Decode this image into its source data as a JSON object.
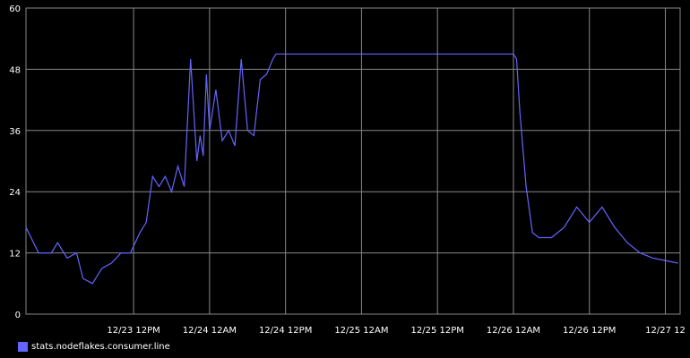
{
  "chart_data": {
    "type": "line",
    "title": "",
    "xlabel": "",
    "ylabel": "",
    "ylim": [
      0,
      60
    ],
    "yticks": [
      0,
      12,
      24,
      36,
      48,
      60
    ],
    "ytick_labels": [
      "0",
      "12",
      "24",
      "36",
      "48",
      "60"
    ],
    "xlim": [
      "12/22 19:00",
      "12/27 02:20"
    ],
    "xtick_labels": [
      "12/23 12PM",
      "12/24 12AM",
      "12/24 12PM",
      "12/25 12AM",
      "12/25 12PM",
      "12/26 12AM",
      "12/26 12PM",
      "12/27 12"
    ],
    "grid": true,
    "legend_position": "bottom-left",
    "background_color": "#000000",
    "grid_color": "#888888",
    "series": [
      {
        "name": "stats.nodeflakes.consumer.line",
        "color": "#6464ff",
        "x": [
          "12/22 19:00",
          "12/22 21:00",
          "12/22 23:00",
          "12/23 00:00",
          "12/23 01:30",
          "12/23 03:00",
          "12/23 04:00",
          "12/23 05:30",
          "12/23 07:00",
          "12/23 08:30",
          "12/23 10:00",
          "12/23 11:30",
          "12/23 13:00",
          "12/23 14:00",
          "12/23 15:00",
          "12/23 16:00",
          "12/23 17:00",
          "12/23 18:00",
          "12/23 19:00",
          "12/23 20:00",
          "12/23 21:00",
          "12/23 22:00",
          "12/23 22:30",
          "12/23 23:00",
          "12/23 23:30",
          "12/24 00:00",
          "12/24 01:00",
          "12/24 02:00",
          "12/24 03:00",
          "12/24 04:00",
          "12/24 05:00",
          "12/24 06:00",
          "12/24 07:00",
          "12/24 08:00",
          "12/24 09:00",
          "12/24 10:00",
          "12/24 10:30",
          "12/24 11:00",
          "12/24 12:00",
          "12/24 14:00",
          "12/25 12:00",
          "12/26 00:00",
          "12/26 00:30",
          "12/26 01:00",
          "12/26 02:00",
          "12/26 03:00",
          "12/26 04:00",
          "12/26 06:00",
          "12/26 08:00",
          "12/26 10:00",
          "12/26 12:00",
          "12/26 14:00",
          "12/26 16:00",
          "12/26 18:00",
          "12/26 20:00",
          "12/26 22:00",
          "12/27 00:00",
          "12/27 02:00"
        ],
        "values": [
          17,
          12,
          12,
          14,
          11,
          12,
          7,
          6,
          9,
          10,
          12,
          12,
          16,
          18,
          27,
          25,
          27,
          24,
          29,
          25,
          50,
          30,
          35,
          31,
          47,
          36,
          44,
          34,
          36,
          33,
          50,
          36,
          35,
          46,
          47,
          50,
          51,
          51,
          51,
          51,
          51,
          51,
          50,
          40,
          25,
          16,
          15,
          15,
          17,
          21,
          18,
          21,
          17,
          14,
          12,
          11,
          10.5,
          10
        ]
      }
    ]
  }
}
